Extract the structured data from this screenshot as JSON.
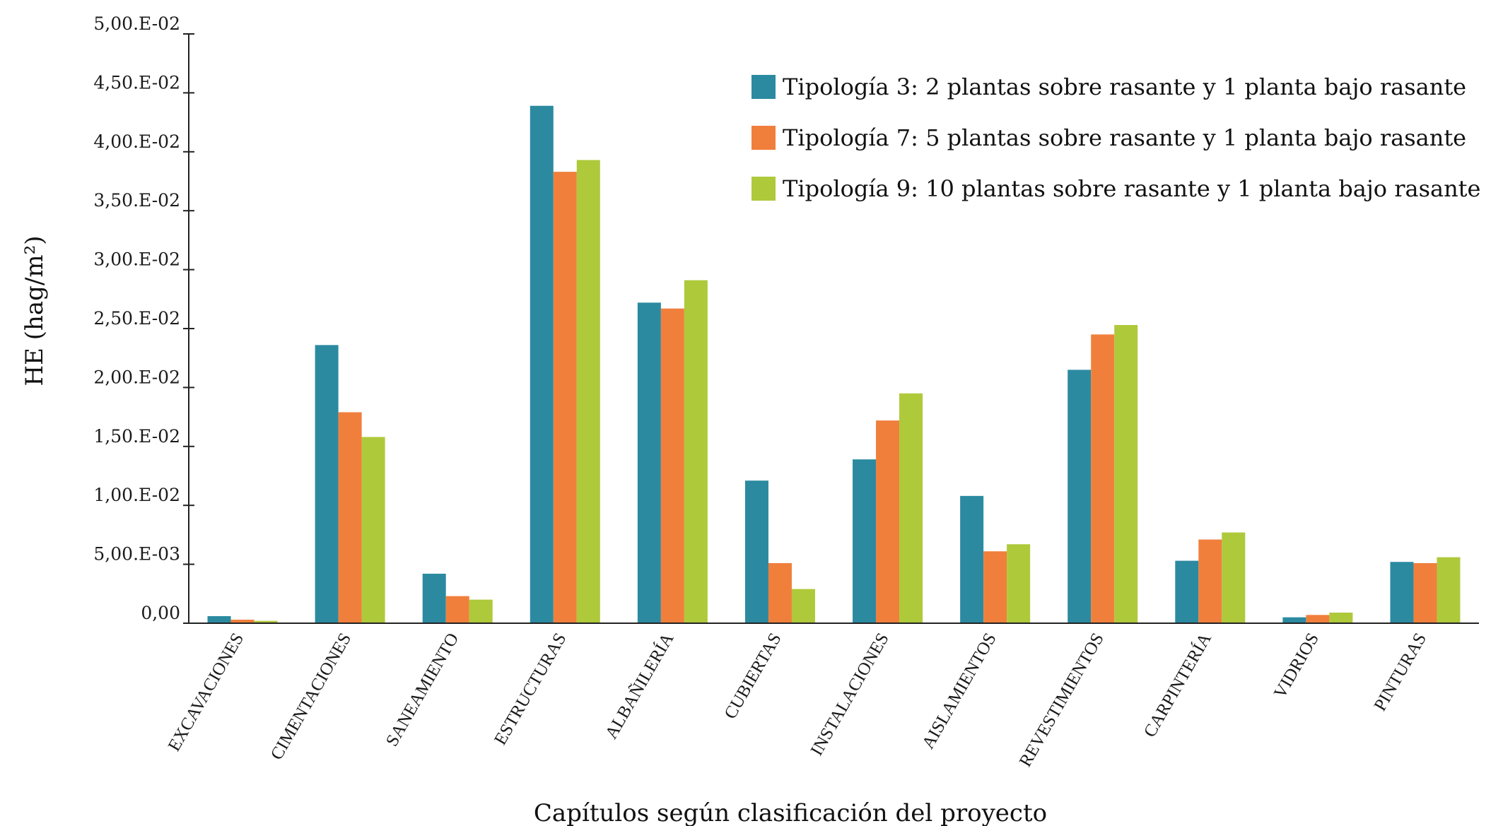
{
  "chart_data": {
    "type": "bar",
    "title": "",
    "xlabel": "Capítulos según clasificación del proyecto",
    "ylabel": "HE (hag/m²)",
    "ylim": [
      0,
      0.05
    ],
    "yticks": [
      0,
      0.005,
      0.01,
      0.015,
      0.02,
      0.025,
      0.03,
      0.035,
      0.04,
      0.045,
      0.05
    ],
    "ytick_labels": [
      "0,00",
      "5,00.E-03",
      "1,00.E-02",
      "1,50.E-02",
      "2,00.E-02",
      "2,50.E-02",
      "3,00.E-02",
      "3,50.E-02",
      "4,00.E-02",
      "4,50.E-02",
      "5,00.E-02"
    ],
    "categories": [
      "EXCAVACIONES",
      "CIMENTACIONES",
      "SANEAMIENTO",
      "ESTRUCTURAS",
      "ALBAÑILERÍA",
      "CUBIERTAS",
      "INSTALACIONES",
      "AISLAMIENTOS",
      "REVESTIMIENTOS",
      "CARPINTERÍA",
      "VIDRIOS",
      "PINTURAS"
    ],
    "series": [
      {
        "name": "Tipología 3: 2 plantas sobre rasante y 1 planta bajo rasante",
        "color": "#2b8aa0",
        "values": [
          0.0006,
          0.0236,
          0.0042,
          0.0439,
          0.0272,
          0.0121,
          0.0139,
          0.0108,
          0.0215,
          0.0053,
          0.0005,
          0.0052
        ]
      },
      {
        "name": "Tipología 7: 5 plantas sobre rasante y 1 planta bajo rasante",
        "color": "#f07f3c",
        "values": [
          0.0003,
          0.0179,
          0.0023,
          0.0383,
          0.0267,
          0.0051,
          0.0172,
          0.0061,
          0.0245,
          0.0071,
          0.0007,
          0.0051
        ]
      },
      {
        "name": "Tipología 9: 10 plantas sobre rasante y 1 planta bajo rasante",
        "color": "#aec93a",
        "values": [
          0.0002,
          0.0158,
          0.002,
          0.0393,
          0.0291,
          0.0029,
          0.0195,
          0.0067,
          0.0253,
          0.0077,
          0.0009,
          0.0056
        ]
      }
    ],
    "legend_position": "top-right",
    "grid": false
  }
}
